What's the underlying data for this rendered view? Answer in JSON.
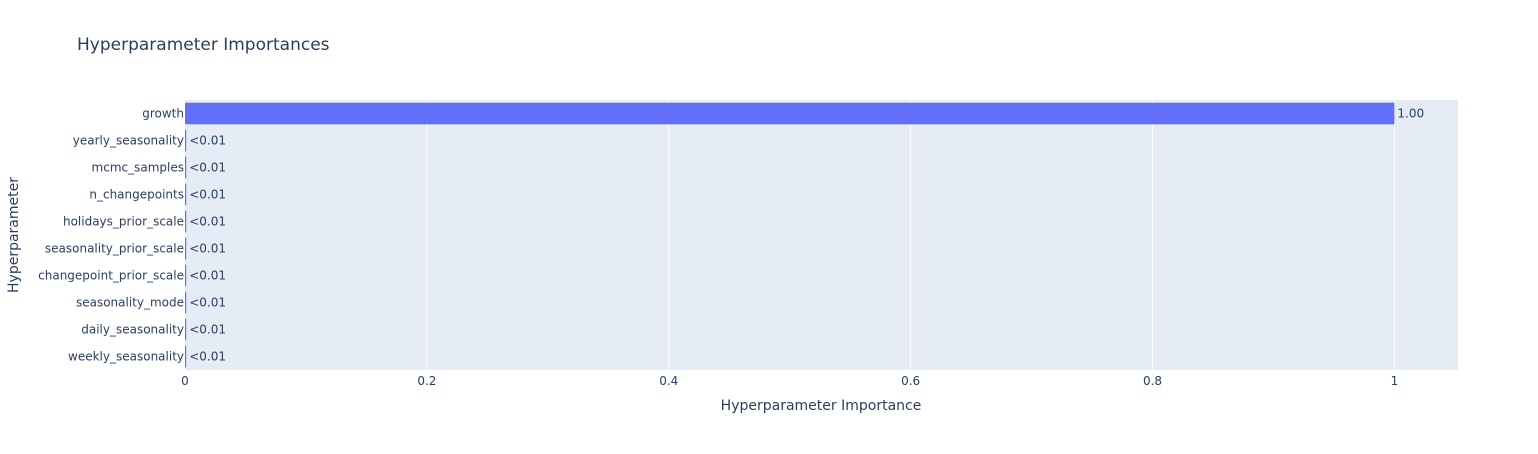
{
  "chart_data": {
    "type": "bar",
    "orientation": "horizontal",
    "title": "Hyperparameter Importances",
    "xlabel": "Hyperparameter Importance",
    "ylabel": "Hyperparameter",
    "categories": [
      "growth",
      "yearly_seasonality",
      "mcmc_samples",
      "n_changepoints",
      "holidays_prior_scale",
      "seasonality_prior_scale",
      "changepoint_prior_scale",
      "seasonality_mode",
      "daily_seasonality",
      "weekly_seasonality"
    ],
    "values": [
      1.0,
      0.001,
      0.001,
      0.001,
      0.001,
      0.001,
      0.001,
      0.001,
      0.001,
      0.001
    ],
    "data_labels": [
      "1.00",
      "<0.01",
      "<0.01",
      "<0.01",
      "<0.01",
      "<0.01",
      "<0.01",
      "<0.01",
      "<0.01",
      "<0.01"
    ],
    "xlim": [
      0,
      1.0526
    ],
    "xticks": [
      0,
      0.2,
      0.4,
      0.6,
      0.8,
      1
    ],
    "xtick_labels": [
      "0",
      "0.2",
      "0.4",
      "0.6",
      "0.8",
      "1"
    ],
    "grid": true,
    "legend": false,
    "colors": {
      "bar": "#636efa",
      "plot_background": "#e5ecf6",
      "grid": "#ffffff",
      "text": "#2a3f5f",
      "title_text": "#2a3f5f"
    }
  }
}
